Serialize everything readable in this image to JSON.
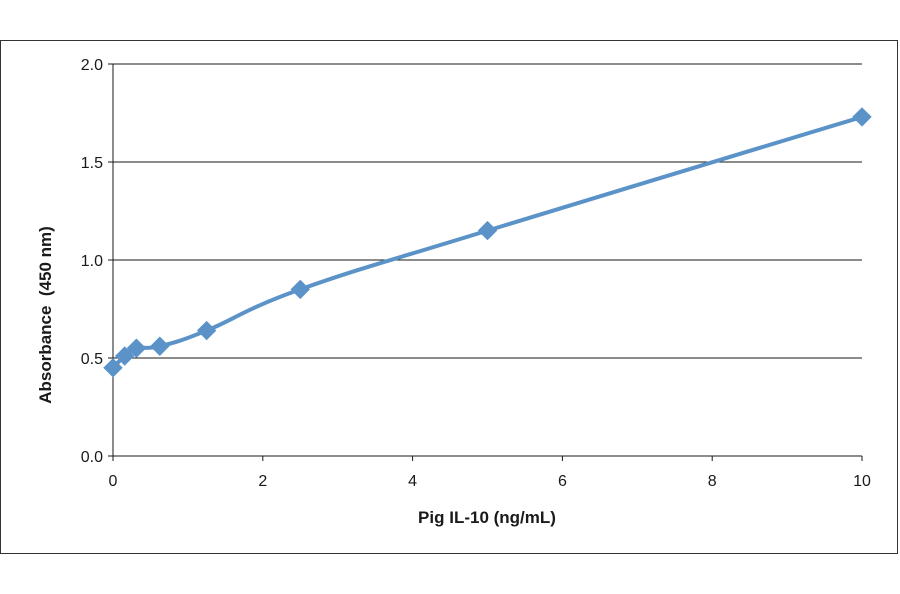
{
  "chart_data": {
    "type": "line",
    "title": "",
    "xlabel": "Pig IL-10 (ng/mL)",
    "ylabel": "Absorbance  (450 nm)",
    "xlim": [
      0,
      10
    ],
    "ylim": [
      0.0,
      2.0
    ],
    "x_ticks": [
      "0",
      "2",
      "4",
      "6",
      "8",
      "10"
    ],
    "y_ticks": [
      "0.0",
      "0.5",
      "1.0",
      "1.5",
      "2.0"
    ],
    "grid": "horizontal",
    "legend": "none",
    "series": [
      {
        "color": "#5b93c9",
        "marker": "diamond",
        "x": [
          0,
          0.156,
          0.313,
          0.625,
          1.25,
          2.5,
          5,
          10
        ],
        "y": [
          0.45,
          0.51,
          0.55,
          0.56,
          0.64,
          0.85,
          1.15,
          1.73
        ]
      }
    ]
  }
}
